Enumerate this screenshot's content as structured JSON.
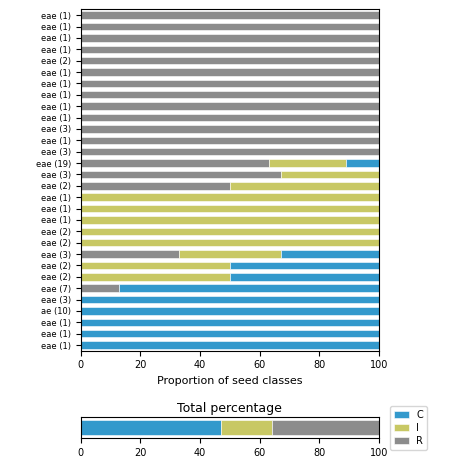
{
  "chart_data": [
    {
      "type": "bar",
      "orientation": "horizontal",
      "stacked": true,
      "xlabel": "Proportion of seed classes",
      "categories": [
        "eae (1)",
        "eae (1)",
        "eae (1)",
        "eae (1)",
        "eae (2)",
        "eae (1)",
        "eae (1)",
        "eae (1)",
        "eae (1)",
        "eae (1)",
        "eae (3)",
        "eae (1)",
        "eae (3)",
        "eae (19)",
        "eae (3)",
        "eae (2)",
        "eae (1)",
        "eae (1)",
        "eae (1)",
        "eae (2)",
        "eae (2)",
        "eae (3)",
        "eae (2)",
        "eae (2)",
        "eae (7)",
        "eae (3)",
        "ae (10)",
        "eae (1)",
        "eae (1)",
        "eae (1)"
      ],
      "series": [
        {
          "color": "#8c8c8c",
          "values": [
            100,
            100,
            100,
            100,
            100,
            100,
            100,
            100,
            100,
            100,
            100,
            100,
            100,
            63,
            67,
            50,
            0,
            0,
            0,
            0,
            0,
            33,
            0,
            0,
            13,
            0,
            0,
            0,
            0,
            0
          ]
        },
        {
          "color": "#c8c864",
          "values": [
            0,
            0,
            0,
            0,
            0,
            0,
            0,
            0,
            0,
            0,
            0,
            0,
            0,
            26,
            33,
            50,
            100,
            100,
            100,
            100,
            100,
            34,
            50,
            50,
            0,
            0,
            0,
            0,
            0,
            0
          ]
        },
        {
          "color": "#3399cc",
          "values": [
            0,
            0,
            0,
            0,
            0,
            0,
            0,
            0,
            0,
            0,
            0,
            0,
            0,
            11,
            0,
            0,
            0,
            0,
            0,
            0,
            0,
            33,
            50,
            50,
            87,
            100,
            100,
            100,
            100,
            100
          ]
        }
      ],
      "xlim": [
        0,
        100
      ],
      "xticks": [
        0,
        20,
        40,
        60,
        80,
        100
      ]
    },
    {
      "type": "bar",
      "orientation": "horizontal",
      "stacked": true,
      "title": "Total percentage",
      "categories": [
        null
      ],
      "series": [
        {
          "name": "C",
          "color": "#3399cc",
          "values": [
            47
          ]
        },
        {
          "name": "I",
          "color": "#c8c864",
          "values": [
            17
          ]
        },
        {
          "name": "R",
          "color": "#8c8c8c",
          "values": [
            36
          ]
        }
      ],
      "xlim": [
        0,
        100
      ],
      "xticks": [
        0,
        20,
        40,
        60,
        80,
        100
      ],
      "legend": "center left"
    }
  ]
}
